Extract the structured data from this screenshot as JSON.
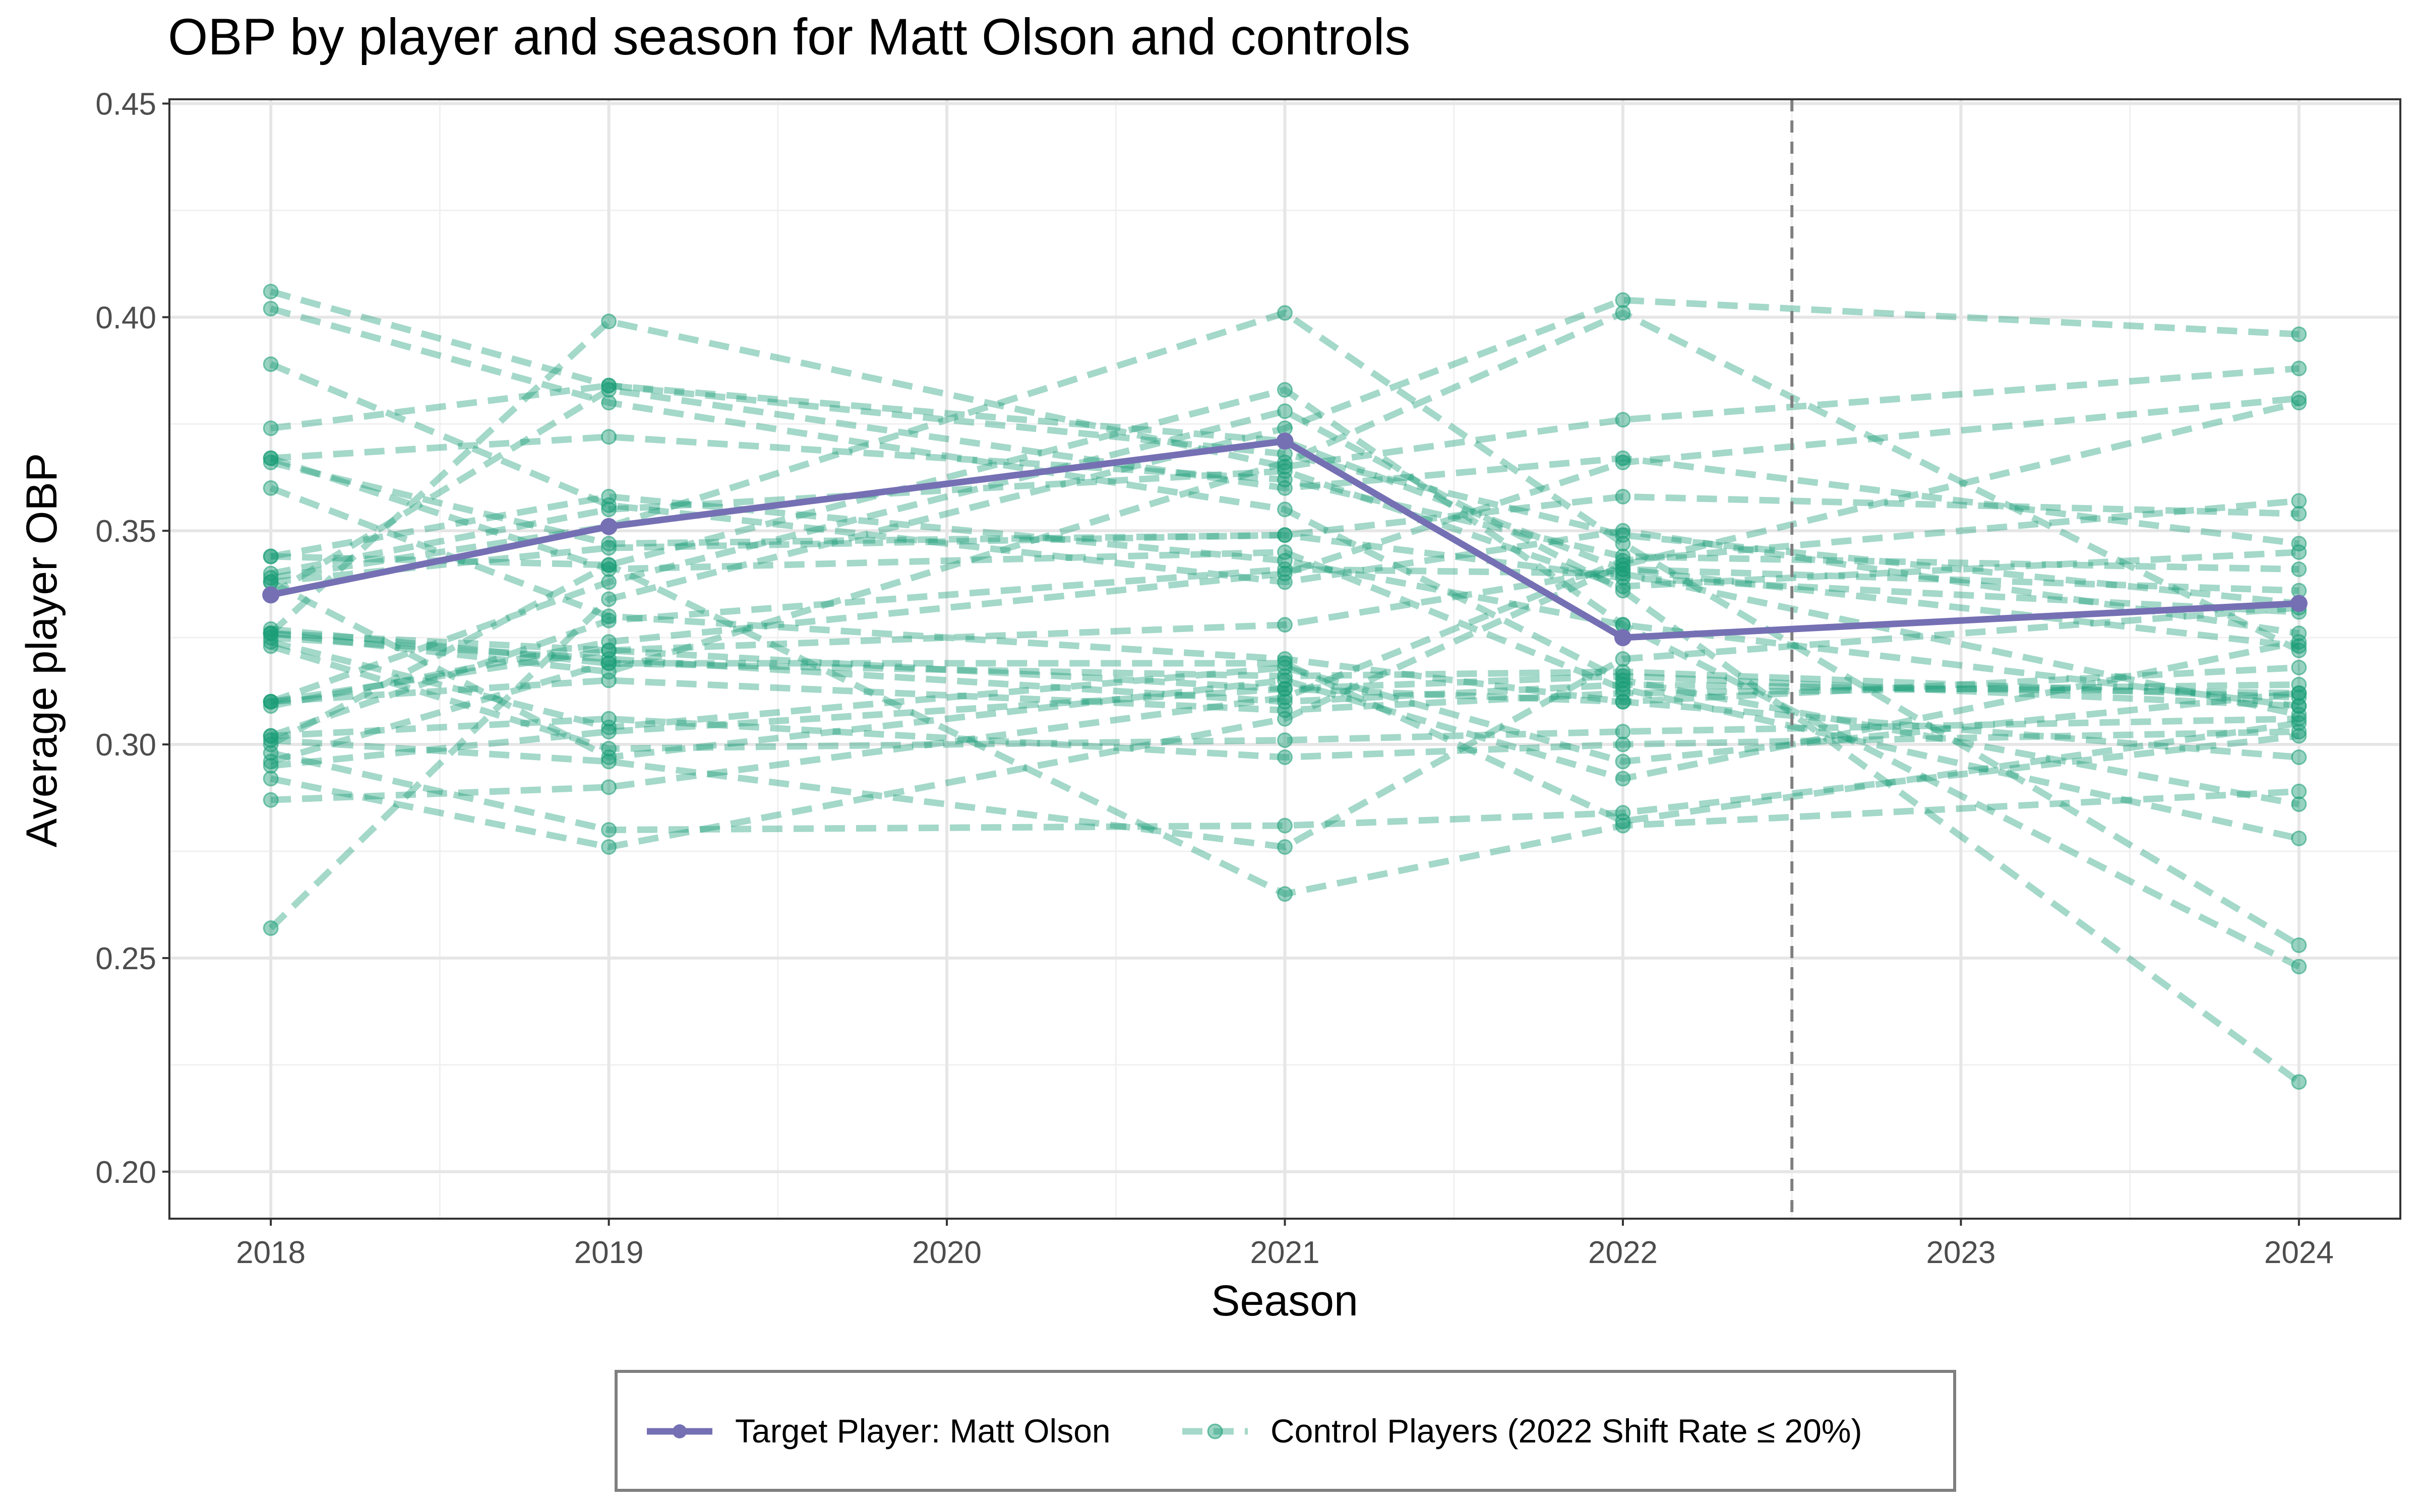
{
  "chart_data": {
    "type": "line",
    "title": "OBP by player and season for Matt Olson and controls",
    "xlabel": "Season",
    "ylabel": "Average player OBP",
    "x_ticks": [
      "2018",
      "2019",
      "2020",
      "2021",
      "2022",
      "2023",
      "2024"
    ],
    "y_ticks": [
      "0.20",
      "0.25",
      "0.30",
      "0.35",
      "0.40",
      "0.45"
    ],
    "xlim": [
      2017.7,
      2024.3
    ],
    "ylim": [
      0.189,
      0.451
    ],
    "grid": true,
    "reference_line": {
      "x": 2022.5,
      "style": "dashed"
    },
    "legend": {
      "position": "bottom",
      "entries": [
        "Target Player: Matt Olson",
        "Control Players (2022 Shift Rate ≤ 20%)"
      ]
    },
    "colors": {
      "target": "#7570b3",
      "control": "#1b9e77",
      "reference": "#7f7f7f"
    },
    "target_series": {
      "name": "Target Player: Matt Olson",
      "x": [
        2018,
        2019,
        2021,
        2022,
        2024
      ],
      "y": [
        0.335,
        0.351,
        0.371,
        0.325,
        0.333
      ]
    },
    "control_series": [
      {
        "x": [
          2018,
          2019,
          2021,
          2022,
          2024
        ],
        "y": [
          0.406,
          0.384,
          0.371,
          0.341,
          0.323
        ]
      },
      {
        "x": [
          2018,
          2019,
          2021,
          2022,
          2024
        ],
        "y": [
          0.402,
          0.38,
          0.355,
          0.315,
          0.286
        ]
      },
      {
        "x": [
          2018,
          2019,
          2021,
          2022,
          2024
        ],
        "y": [
          0.389,
          0.356,
          0.338,
          0.35,
          0.326
        ]
      },
      {
        "x": [
          2018,
          2019,
          2021,
          2022,
          2024
        ],
        "y": [
          0.374,
          0.384,
          0.368,
          0.349,
          0.333
        ]
      },
      {
        "x": [
          2018,
          2019,
          2021,
          2022,
          2024
        ],
        "y": [
          0.367,
          0.341,
          0.345,
          0.313,
          0.278
        ]
      },
      {
        "x": [
          2018,
          2019,
          2021,
          2022,
          2024
        ],
        "y": [
          0.367,
          0.372,
          0.362,
          0.344,
          0.341
        ]
      },
      {
        "x": [
          2018,
          2019,
          2021,
          2022,
          2024
        ],
        "y": [
          0.36,
          0.33,
          0.32,
          0.31,
          0.297
        ]
      },
      {
        "x": [
          2018,
          2019,
          2021,
          2022,
          2024
        ],
        "y": [
          0.344,
          0.358,
          0.343,
          0.328,
          0.309
        ]
      },
      {
        "x": [
          2018,
          2019,
          2021,
          2022,
          2024
        ],
        "y": [
          0.34,
          0.355,
          0.364,
          0.337,
          0.345
        ]
      },
      {
        "x": [
          2018,
          2019,
          2021,
          2022,
          2024
        ],
        "y": [
          0.338,
          0.346,
          0.349,
          0.339,
          0.331
        ]
      },
      {
        "x": [
          2018,
          2019,
          2021,
          2022,
          2024
        ],
        "y": [
          0.327,
          0.319,
          0.316,
          0.317,
          0.311
        ]
      },
      {
        "x": [
          2018,
          2019,
          2021,
          2022,
          2024
        ],
        "y": [
          0.326,
          0.322,
          0.313,
          0.316,
          0.309
        ]
      },
      {
        "x": [
          2018,
          2019,
          2021,
          2022,
          2024
        ],
        "y": [
          0.325,
          0.32,
          0.31,
          0.314,
          0.312
        ]
      },
      {
        "x": [
          2018,
          2019,
          2021,
          2022,
          2024
        ],
        "y": [
          0.323,
          0.299,
          0.301,
          0.303,
          0.306
        ]
      },
      {
        "x": [
          2018,
          2019,
          2021,
          2022,
          2024
        ],
        "y": [
          0.31,
          0.315,
          0.308,
          0.312,
          0.314
        ]
      },
      {
        "x": [
          2018,
          2019,
          2021,
          2022,
          2024
        ],
        "y": [
          0.309,
          0.324,
          0.34,
          0.366,
          0.381
        ]
      },
      {
        "x": [
          2018,
          2019,
          2021,
          2022,
          2024
        ],
        "y": [
          0.302,
          0.306,
          0.297,
          0.3,
          0.303
        ]
      },
      {
        "x": [
          2018,
          2019,
          2021,
          2022,
          2024
        ],
        "y": [
          0.301,
          0.296,
          0.276,
          0.32,
          0.332
        ]
      },
      {
        "x": [
          2018,
          2019,
          2021,
          2022,
          2024
        ],
        "y": [
          0.298,
          0.28,
          0.281,
          0.284,
          0.302
        ]
      },
      {
        "x": [
          2018,
          2019,
          2021,
          2022,
          2024
        ],
        "y": [
          0.295,
          0.303,
          0.313,
          0.31,
          0.318
        ]
      },
      {
        "x": [
          2018,
          2019,
          2021,
          2022,
          2024
        ],
        "y": [
          0.292,
          0.276,
          0.306,
          0.342,
          0.38
        ]
      },
      {
        "x": [
          2018,
          2019,
          2021,
          2022,
          2024
        ],
        "y": [
          0.287,
          0.29,
          0.311,
          0.343,
          0.357
        ]
      },
      {
        "x": [
          2018,
          2019,
          2021,
          2022,
          2024
        ],
        "y": [
          0.257,
          0.334,
          0.374,
          0.404,
          0.396
        ]
      },
      {
        "x": [
          2018,
          2019,
          2021,
          2022,
          2024
        ],
        "y": [
          0.326,
          0.399,
          0.365,
          0.376,
          0.388
        ]
      },
      {
        "x": [
          2018,
          2019,
          2021,
          2022,
          2024
        ],
        "y": [
          0.339,
          0.351,
          0.401,
          0.347,
          0.253
        ]
      },
      {
        "x": [
          2018,
          2019,
          2021,
          2022,
          2024
        ],
        "y": [
          0.344,
          0.342,
          0.383,
          0.328,
          0.248
        ]
      },
      {
        "x": [
          2018,
          2019,
          2021,
          2022,
          2024
        ],
        "y": [
          0.31,
          0.338,
          0.378,
          0.336,
          0.221
        ]
      },
      {
        "x": [
          2018,
          2019,
          2021,
          2022,
          2024
        ],
        "y": [
          0.335,
          0.383,
          0.36,
          0.367,
          0.347
        ]
      },
      {
        "x": [
          2018,
          2019,
          2021,
          2022,
          2024
        ],
        "y": [
          0.366,
          0.347,
          0.349,
          0.358,
          0.354
        ]
      },
      {
        "x": [
          2018,
          2019,
          2021,
          2022,
          2024
        ],
        "y": [
          0.3,
          0.342,
          0.265,
          0.281,
          0.289
        ]
      },
      {
        "x": [
          2018,
          2019,
          2021,
          2022,
          2024
        ],
        "y": [
          0.326,
          0.317,
          0.366,
          0.401,
          0.322
        ]
      },
      {
        "x": [
          2018,
          2019,
          2021,
          2022,
          2024
        ],
        "y": [
          0.31,
          0.322,
          0.328,
          0.341,
          0.336
        ]
      },
      {
        "x": [
          2018,
          2019,
          2021,
          2022,
          2024
        ],
        "y": [
          0.296,
          0.319,
          0.319,
          0.282,
          0.305
        ]
      },
      {
        "x": [
          2018,
          2019,
          2021,
          2022,
          2024
        ],
        "y": [
          0.302,
          0.329,
          0.341,
          0.34,
          0.307
        ]
      },
      {
        "x": [
          2018,
          2019,
          2021,
          2022,
          2024
        ],
        "y": [
          0.338,
          0.297,
          0.315,
          0.292,
          0.324
        ]
      },
      {
        "x": [
          2018,
          2019,
          2021,
          2022,
          2024
        ],
        "y": [
          0.324,
          0.304,
          0.318,
          0.296,
          0.312
        ]
      }
    ]
  }
}
